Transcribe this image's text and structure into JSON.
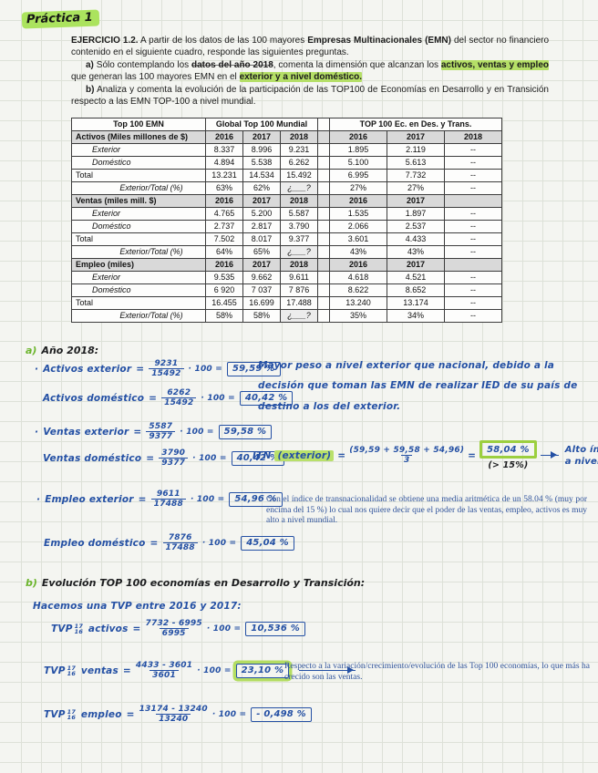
{
  "title": "Práctica 1",
  "colors": {
    "highlight_green": "#b5df67",
    "ink_blue": "#2450a4",
    "typed_navy": "#31549c",
    "table_header_bg": "#d9d9d9"
  },
  "exercise": {
    "p1": [
      {
        "t": "EJERCICIO 1.2.",
        "s": "b"
      },
      {
        "t": " A partir de los datos de las 100 mayores ",
        "s": "n"
      },
      {
        "t": "Empresas Multinacionales (EMN)",
        "s": "b"
      },
      {
        "t": " del sector no financiero contenido en el siguiente cuadro, responde las siguientes preguntas.",
        "s": "n"
      }
    ],
    "p2": [
      {
        "t": "a)",
        "s": "b"
      },
      {
        "t": " Sólo contemplando los ",
        "s": "n"
      },
      {
        "t": "datos del año 2018",
        "s": "bs"
      },
      {
        "t": ", comenta la dimensión que alcanzan los ",
        "s": "n"
      },
      {
        "t": "activos, ventas y empleo",
        "s": "hl"
      },
      {
        "t": " que generan las 100 mayores EMN en el ",
        "s": "n"
      },
      {
        "t": "exterior y a nivel doméstico.",
        "s": "hl"
      }
    ],
    "p3": [
      {
        "t": "b)",
        "s": "b"
      },
      {
        "t": " Analiza y comenta la evolución de la participación de las TOP100 de Economías en Desarrollo y en Transición respecto a las EMN TOP-100 a nivel mundial.",
        "s": "n"
      }
    ]
  },
  "table": {
    "col_headers": [
      "Top 100 EMN",
      "Global Top 100 Mundial",
      "TOP 100 Ec. en Des. y Trans."
    ],
    "sections": [
      {
        "label": "Activos (Miles millones de $)",
        "years_left": [
          "2016",
          "2017",
          "2018"
        ],
        "years_right": [
          "2016",
          "2017",
          "2018"
        ],
        "rows": [
          {
            "label": "Exterior",
            "italic": true,
            "left": [
              "8.337",
              "8.996",
              "9.231"
            ],
            "right": [
              "1.895",
              "2.119",
              "--"
            ]
          },
          {
            "label": "Doméstico",
            "italic": true,
            "left": [
              "4.894",
              "5.538",
              "6.262"
            ],
            "right": [
              "5.100",
              "5.613",
              "--"
            ]
          },
          {
            "label": "Total",
            "left": [
              "13.231",
              "14.534",
              "15.492"
            ],
            "right": [
              "6.995",
              "7.732",
              "--"
            ]
          },
          {
            "label": "Exterior/Total (%)",
            "ratio": true,
            "left": [
              "63%",
              "62%",
              "¿___?"
            ],
            "right": [
              "27%",
              "27%",
              "--"
            ]
          }
        ]
      },
      {
        "label": "Ventas (miles mill. $)",
        "years_left": [
          "2016",
          "2017",
          "2018"
        ],
        "years_right": [
          "2016",
          "2017",
          ""
        ],
        "rows": [
          {
            "label": "Exterior",
            "italic": true,
            "left": [
              "4.765",
              "5.200",
              "5.587"
            ],
            "right": [
              "1.535",
              "1.897",
              "--"
            ]
          },
          {
            "label": "Doméstico",
            "italic": true,
            "left": [
              "2.737",
              "2.817",
              "3.790"
            ],
            "right": [
              "2.066",
              "2.537",
              "--"
            ]
          },
          {
            "label": "Total",
            "left": [
              "7.502",
              "8.017",
              "9.377"
            ],
            "right": [
              "3.601",
              "4.433",
              "--"
            ]
          },
          {
            "label": "Exterior/Total (%)",
            "ratio": true,
            "left": [
              "64%",
              "65%",
              "¿___?"
            ],
            "right": [
              "43%",
              "43%",
              "--"
            ]
          }
        ]
      },
      {
        "label": "Empleo (miles)",
        "years_left": [
          "2016",
          "2017",
          "2018"
        ],
        "years_right": [
          "2016",
          "2017",
          ""
        ],
        "rows": [
          {
            "label": "Exterior",
            "italic": true,
            "left": [
              "9.535",
              "9.662",
              "9.611"
            ],
            "right": [
              "4.618",
              "4.521",
              "--"
            ]
          },
          {
            "label": "Doméstico",
            "italic": true,
            "left": [
              "6 920",
              "7 037",
              "7 876"
            ],
            "right": [
              "8.622",
              "8.652",
              "--"
            ]
          },
          {
            "label": "Total",
            "left": [
              "16.455",
              "16.699",
              "17.488"
            ],
            "right": [
              "13.240",
              "13.174",
              "--"
            ]
          },
          {
            "label": "Exterior/Total (%)",
            "ratio": true,
            "left": [
              "58%",
              "58%",
              "¿___?"
            ],
            "right": [
              "35%",
              "34%",
              "--"
            ]
          }
        ]
      }
    ]
  },
  "glue": {
    "eq": "=",
    "x100": "· 100 =",
    "tvp": "TVP"
  },
  "part_a": {
    "marker": "a)",
    "heading": "Año 2018:",
    "formulas": [
      {
        "bullet": "·",
        "label": "Activos exterior",
        "num": "9231",
        "den": "15492",
        "result": "59,59 %"
      },
      {
        "label": "Activos doméstico",
        "num": "6262",
        "den": "15492",
        "result": "40,42 %"
      },
      {
        "bullet": "·",
        "label": "Ventas exterior",
        "num": "5587",
        "den": "9377",
        "result": "59,58 %"
      },
      {
        "label": "Ventas doméstico",
        "num": "3790",
        "den": "9377",
        "result": "40,42 %"
      },
      {
        "bullet": "·",
        "label": "Empleo exterior",
        "num": "9611",
        "den": "17488",
        "result": "54,96 %"
      },
      {
        "label": "Empleo doméstico",
        "num": "7876",
        "den": "17488",
        "result": "45,04 %"
      }
    ],
    "note_right": "Mayor peso a nivel exterior que nacional, debido a la decisión que toman las EMN de realizar IED de su país de destino a los del exterior.",
    "itn": {
      "prefix": "ITN",
      "highlighted": "(exterior)",
      "eq": "=",
      "num": "(59,59 + 59,58 + 54,96)",
      "den": "3",
      "eq2": "=",
      "result": "58,04 %",
      "threshold": "(> 15%)",
      "conclusion1": "Alto índice de poder",
      "conclusion2": "a nivel mundial"
    },
    "typed_note": "Con el índice de transnacionalidad se obtiene una media aritmética de un 58.04 % (muy por encima del 15 %) lo cual nos quiere decir que el poder de las ventas, empleo, activos es muy alto a nivel mundial."
  },
  "part_b": {
    "marker": "b)",
    "heading": "Evolución TOP 100 economías en Desarrollo y Transición:",
    "subheading": "Hacemos una TVP entre 2016 y 2017:",
    "formulas": [
      {
        "tvp": true,
        "sup": "17",
        "sub": "16",
        "label": "activos",
        "num": "7732 - 6995",
        "den": "6995",
        "result": "10,536 %"
      },
      {
        "tvp": true,
        "sup": "17",
        "sub": "16",
        "label": "ventas",
        "num": "4433 - 3601",
        "den": "3601",
        "result": "23,10 %",
        "highlight": true,
        "arrow": true
      },
      {
        "tvp": true,
        "sup": "17",
        "sub": "16",
        "label": "empleo",
        "num": "13174 - 13240",
        "den": "13240",
        "result": "- 0,498 %"
      }
    ],
    "typed_note": "Respecto a la variación/crecimiento/evolución de las Top 100 economías, lo que más ha crecido son las ventas."
  }
}
